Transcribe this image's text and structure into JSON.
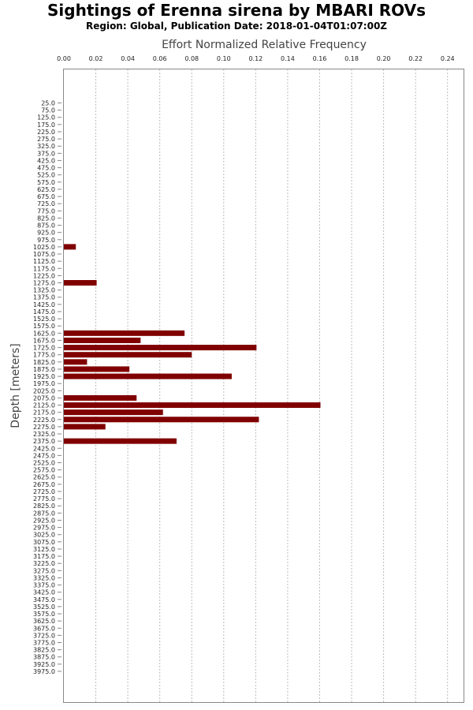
{
  "chart_data": {
    "type": "bar",
    "orientation": "horizontal",
    "title": "Sightings of Erenna sirena by MBARI ROVs",
    "subtitle": "Region: Global, Publication Date: 2018-01-04T01:07:00Z",
    "xlabel": "Effort Normalized Relative Frequency",
    "ylabel": "Depth [meters]",
    "xlim": [
      0,
      0.25
    ],
    "xticks": [
      "0.00",
      "0.02",
      "0.04",
      "0.06",
      "0.08",
      "0.10",
      "0.12",
      "0.14",
      "0.16",
      "0.18",
      "0.20",
      "0.22",
      "0.24"
    ],
    "grid": true,
    "bar_color": "#800000",
    "categories": [
      "25.0",
      "75.0",
      "125.0",
      "175.0",
      "225.0",
      "275.0",
      "325.0",
      "375.0",
      "425.0",
      "475.0",
      "525.0",
      "575.0",
      "625.0",
      "675.0",
      "725.0",
      "775.0",
      "825.0",
      "875.0",
      "925.0",
      "975.0",
      "1025.0",
      "1075.0",
      "1125.0",
      "1175.0",
      "1225.0",
      "1275.0",
      "1325.0",
      "1375.0",
      "1425.0",
      "1475.0",
      "1525.0",
      "1575.0",
      "1625.0",
      "1675.0",
      "1725.0",
      "1775.0",
      "1825.0",
      "1875.0",
      "1925.0",
      "1975.0",
      "2025.0",
      "2075.0",
      "2125.0",
      "2175.0",
      "2225.0",
      "2275.0",
      "2325.0",
      "2375.0",
      "2425.0",
      "2475.0",
      "2525.0",
      "2575.0",
      "2625.0",
      "2675.0",
      "2725.0",
      "2775.0",
      "2825.0",
      "2875.0",
      "2925.0",
      "2975.0",
      "3025.0",
      "3075.0",
      "3125.0",
      "3175.0",
      "3225.0",
      "3275.0",
      "3325.0",
      "3375.0",
      "3425.0",
      "3475.0",
      "3525.0",
      "3575.0",
      "3625.0",
      "3675.0",
      "3725.0",
      "3775.0",
      "3825.0",
      "3875.0",
      "3925.0",
      "3975.0"
    ],
    "values": [
      0,
      0,
      0,
      0,
      0,
      0,
      0,
      0,
      0,
      0,
      0,
      0,
      0,
      0,
      0,
      0,
      0,
      0,
      0,
      0,
      0.0075,
      0,
      0,
      0,
      0,
      0.0205,
      0,
      0,
      0,
      0,
      0,
      0,
      0.0755,
      0.048,
      0.1205,
      0.08,
      0.0145,
      0.041,
      0.105,
      0,
      0,
      0.0455,
      0.1605,
      0.062,
      0.122,
      0.026,
      0,
      0.0705,
      0,
      0,
      0,
      0,
      0,
      0,
      0,
      0,
      0,
      0,
      0,
      0,
      0,
      0,
      0,
      0,
      0,
      0,
      0,
      0,
      0,
      0,
      0,
      0,
      0,
      0,
      0,
      0,
      0,
      0,
      0,
      0
    ]
  }
}
